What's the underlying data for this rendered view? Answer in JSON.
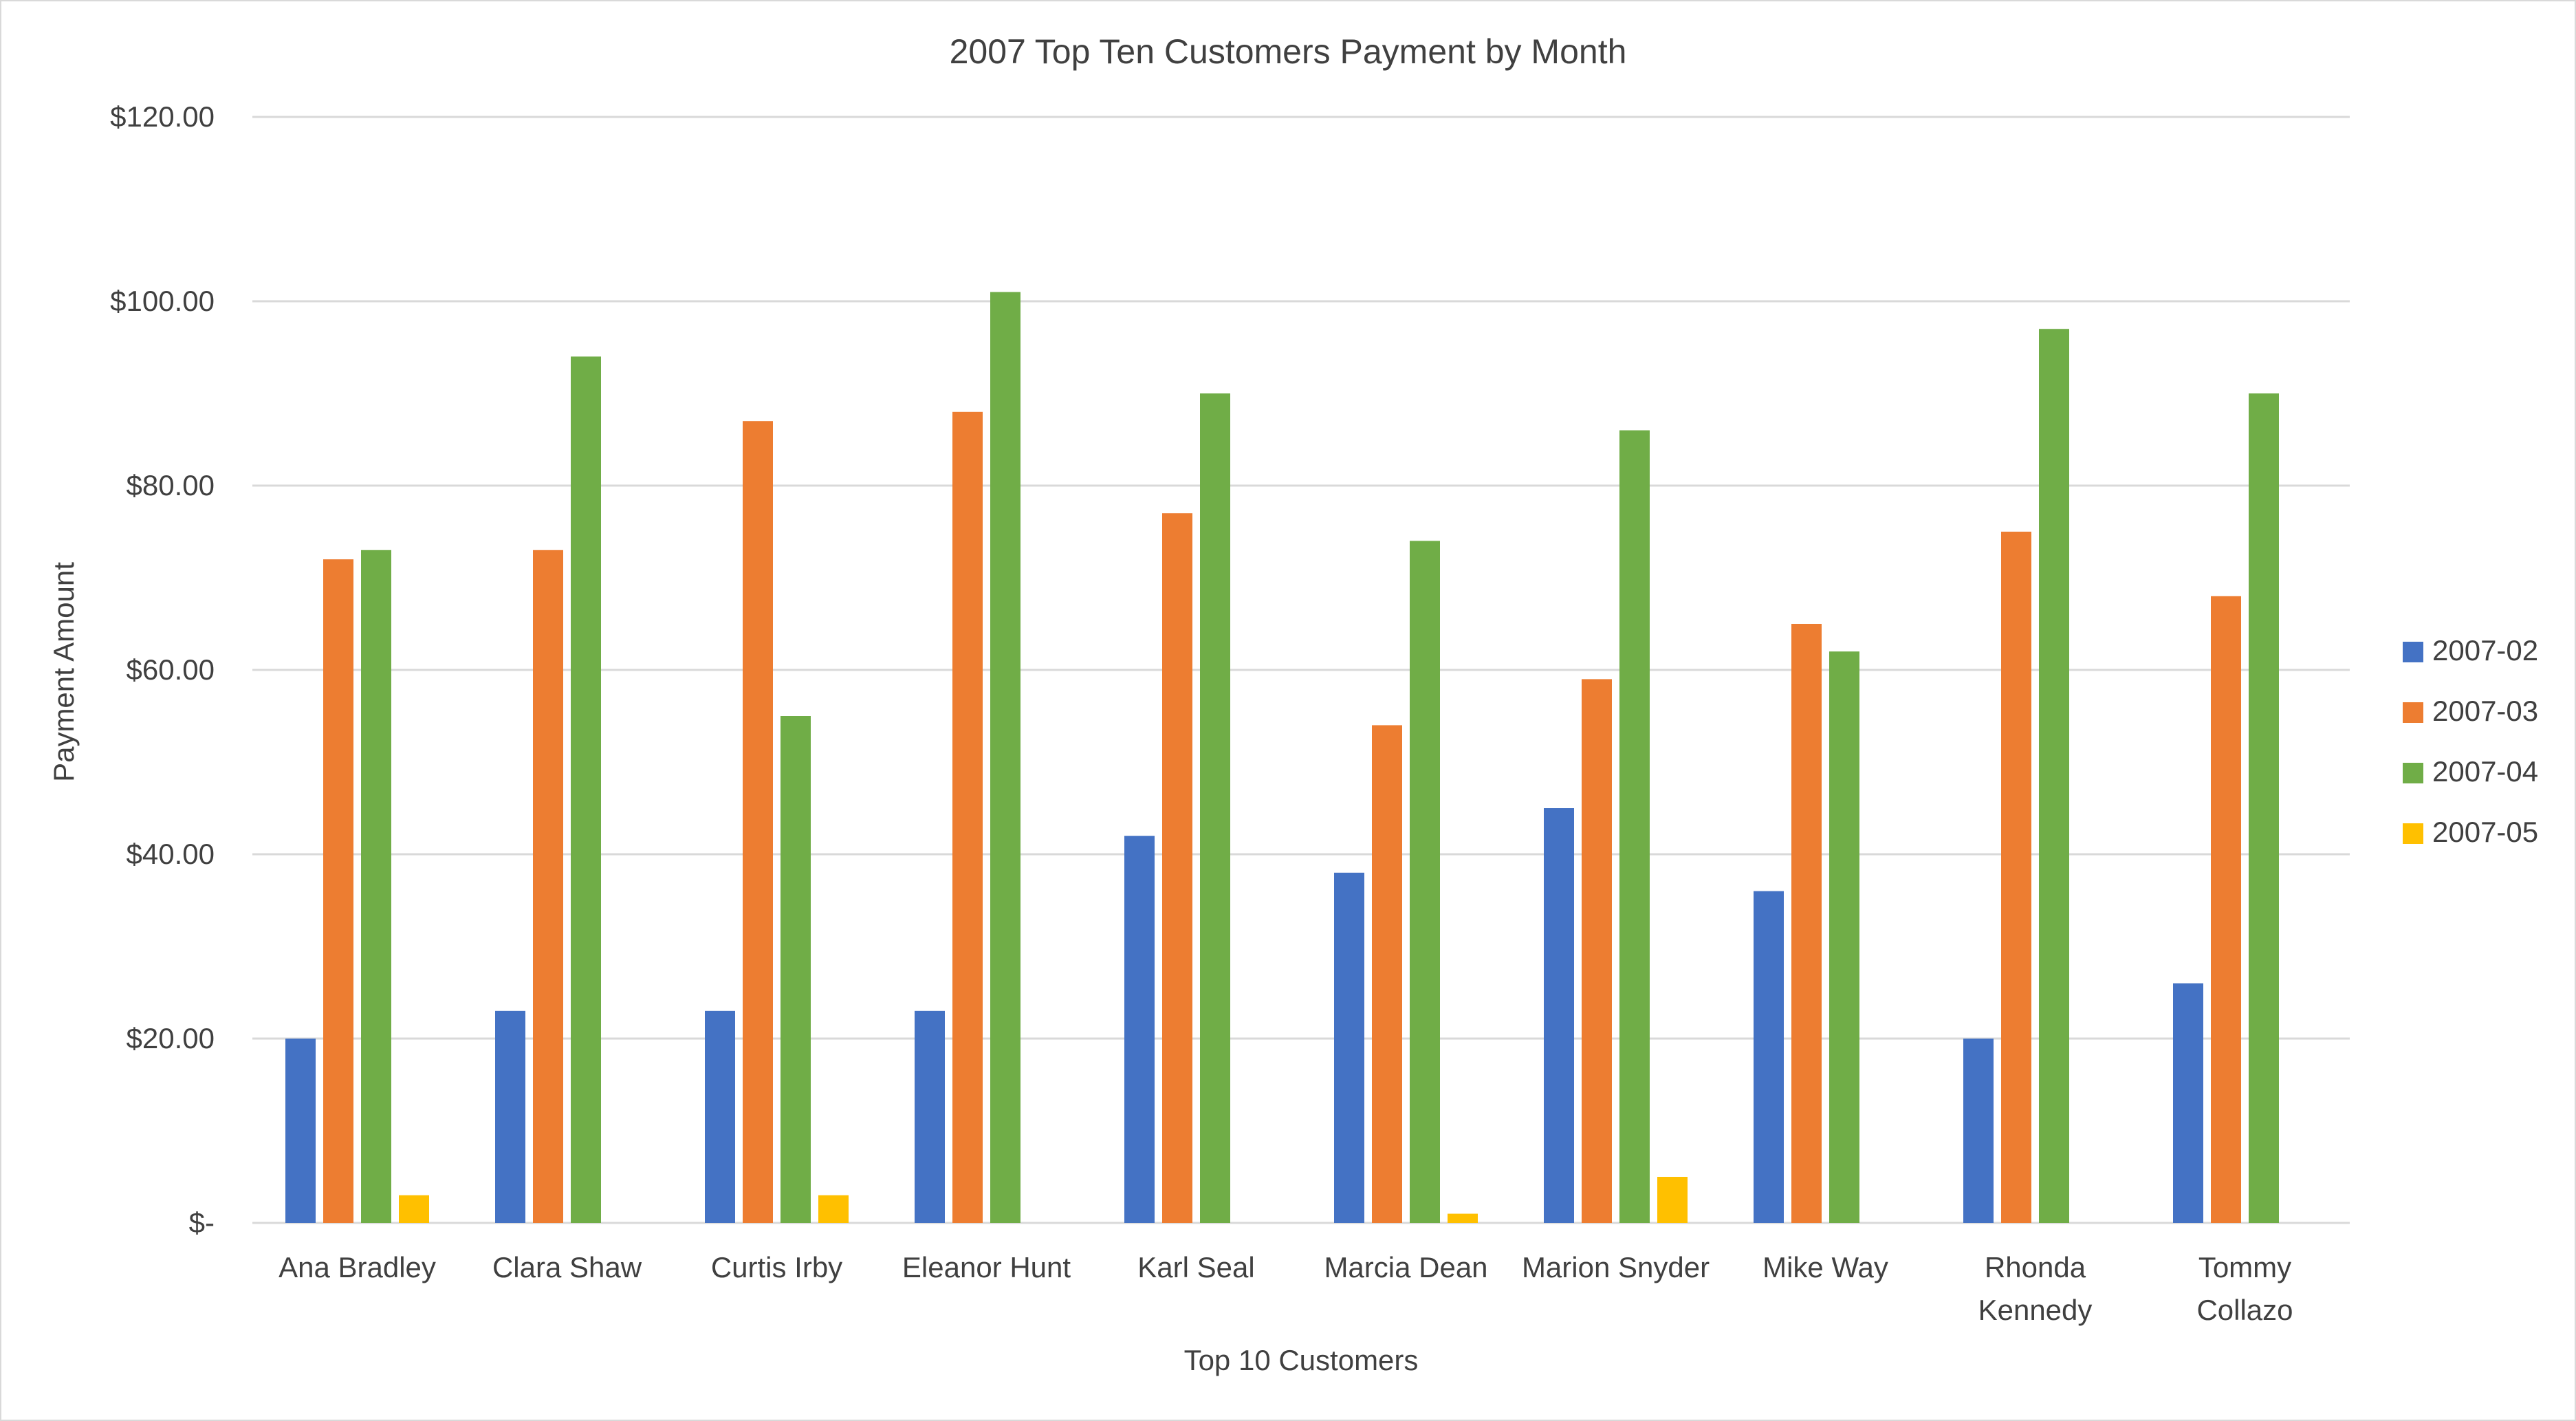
{
  "chart_data": {
    "type": "bar",
    "title": "2007 Top Ten Customers Payment by Month",
    "xlabel": "Top 10 Customers",
    "ylabel": "Payment Amount",
    "ylim": [
      0,
      120
    ],
    "y_ticks": [
      0,
      20,
      40,
      60,
      80,
      100,
      120
    ],
    "y_tick_labels": [
      "$-",
      "$20.00",
      "$40.00",
      "$60.00",
      "$80.00",
      "$100.00",
      "$120.00"
    ],
    "grid": true,
    "legend_position": "right",
    "categories": [
      [
        "Ana Bradley"
      ],
      [
        "Clara Shaw"
      ],
      [
        "Curtis Irby"
      ],
      [
        "Eleanor Hunt"
      ],
      [
        "Karl Seal"
      ],
      [
        "Marcia Dean"
      ],
      [
        "Marion Snyder"
      ],
      [
        "Mike Way"
      ],
      [
        "Rhonda",
        "Kennedy"
      ],
      [
        "Tommy",
        "Collazo"
      ]
    ],
    "series": [
      {
        "name": "2007-02",
        "color": "#4472C4",
        "values": [
          20,
          23,
          23,
          23,
          42,
          38,
          45,
          36,
          20,
          26
        ]
      },
      {
        "name": "2007-03",
        "color": "#ED7D31",
        "values": [
          72,
          73,
          87,
          88,
          77,
          54,
          59,
          65,
          75,
          68
        ]
      },
      {
        "name": "2007-04",
        "color": "#70AD47",
        "values": [
          73,
          94,
          55,
          101,
          90,
          74,
          86,
          62,
          97,
          90
        ]
      },
      {
        "name": "2007-05",
        "color": "#FFC000",
        "values": [
          3,
          0,
          3,
          0,
          0,
          1,
          5,
          0,
          0,
          0
        ]
      }
    ]
  },
  "colors": {
    "gridline": "#d9d9d9",
    "text": "#404040",
    "border": "#d9d9d9"
  }
}
